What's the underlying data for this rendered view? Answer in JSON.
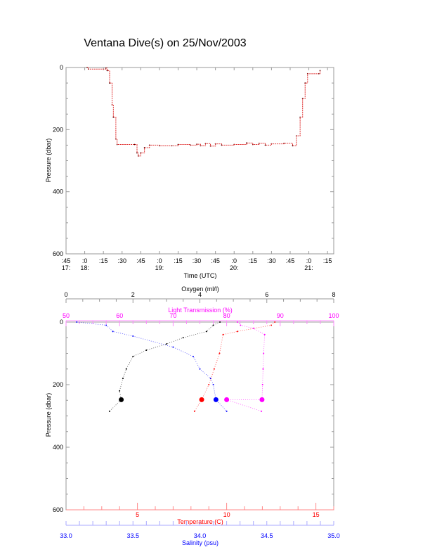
{
  "title": "Ventana Dive(s) on 25/Nov/2003",
  "chart_data": [
    {
      "type": "line",
      "xlabel": "Time (UTC)",
      "ylabel": "Pressure (dbar)",
      "xlim": [
        "17:45",
        "21:20"
      ],
      "ylim": [
        600,
        0
      ],
      "x_ticks": [
        {
          "t": "17:45",
          "l1": ":45",
          "l2": "17:"
        },
        {
          "t": "18:00",
          "l1": ":0",
          "l2": "18:"
        },
        {
          "t": "18:15",
          "l1": ":15",
          "l2": ""
        },
        {
          "t": "18:30",
          "l1": ":30",
          "l2": ""
        },
        {
          "t": "18:45",
          "l1": ":45",
          "l2": ""
        },
        {
          "t": "19:00",
          "l1": ":0",
          "l2": "19:"
        },
        {
          "t": "19:15",
          "l1": ":15",
          "l2": ""
        },
        {
          "t": "19:30",
          "l1": ":30",
          "l2": ""
        },
        {
          "t": "19:45",
          "l1": ":45",
          "l2": ""
        },
        {
          "t": "20:00",
          "l1": ":0",
          "l2": "20:"
        },
        {
          "t": "20:15",
          "l1": ":15",
          "l2": ""
        },
        {
          "t": "20:30",
          "l1": ":30",
          "l2": ""
        },
        {
          "t": "20:45",
          "l1": ":45",
          "l2": ""
        },
        {
          "t": "21:00",
          "l1": ":0",
          "l2": "21:"
        },
        {
          "t": "21:15",
          "l1": ":15",
          "l2": ""
        }
      ],
      "y_ticks": [
        "0",
        "200",
        "400",
        "600"
      ],
      "line_color": "#e03030",
      "series": [
        {
          "x": [
            "18:02",
            "18:03",
            "18:17",
            "18:18",
            "18:20",
            "18:22",
            "18:23",
            "18:25",
            "18:26",
            "18:40",
            "18:42",
            "18:43",
            "18:45",
            "18:48",
            "18:52",
            "19:00",
            "19:10",
            "19:15",
            "19:25",
            "19:30",
            "19:33",
            "19:37",
            "19:41",
            "19:45",
            "19:50",
            "20:00",
            "20:10",
            "20:15",
            "20:20",
            "20:25",
            "20:30",
            "20:40",
            "20:47",
            "20:50",
            "20:53",
            "20:55",
            "20:57",
            "20:59",
            "21:08",
            "21:09"
          ],
          "y": [
            0,
            5,
            2,
            10,
            50,
            120,
            160,
            230,
            248,
            248,
            275,
            285,
            275,
            258,
            250,
            252,
            252,
            248,
            250,
            247,
            252,
            245,
            253,
            246,
            250,
            248,
            243,
            248,
            244,
            250,
            246,
            244,
            252,
            220,
            160,
            100,
            50,
            20,
            20,
            10
          ]
        }
      ]
    },
    {
      "type": "scatter",
      "ylabel": "Pressure (dbar)",
      "ylim": [
        600,
        0
      ],
      "y_ticks": [
        "0",
        "200",
        "400",
        "600"
      ],
      "axes": {
        "oxygen": {
          "label": "Oxygen (ml/l)",
          "range": [
            0,
            8
          ],
          "ticks": [
            "0",
            "2",
            "4",
            "6",
            "8"
          ],
          "color": "#000000"
        },
        "light": {
          "label": "Light Transmission (%)",
          "range": [
            50,
            100
          ],
          "ticks": [
            "50",
            "60",
            "70",
            "80",
            "90",
            "100"
          ],
          "color": "#ff00ff"
        },
        "temperature": {
          "label": "Temperature (C)",
          "range": [
            1,
            16
          ],
          "ticks": [
            "5",
            "10",
            "15"
          ],
          "color": "#ff0000"
        },
        "salinity": {
          "label": "Salinity (psu)",
          "range": [
            33,
            35
          ],
          "ticks": [
            "33.0",
            "33.5",
            "34.0",
            "34.5",
            "35.0"
          ],
          "color": "#0000ff"
        }
      },
      "series": [
        {
          "axis": "oxygen",
          "x": [
            4.6,
            4.4,
            4.2,
            3.5,
            3.0,
            2.4,
            2.0,
            1.8,
            1.7,
            1.6,
            1.65,
            1.3
          ],
          "y": [
            0,
            10,
            30,
            50,
            70,
            90,
            110,
            150,
            180,
            220,
            248,
            285
          ]
        },
        {
          "axis": "salinity",
          "x": [
            33.08,
            33.3,
            33.35,
            33.5,
            33.8,
            33.95,
            34.0,
            34.08,
            34.1,
            34.12,
            34.2
          ],
          "y": [
            0,
            10,
            30,
            45,
            80,
            110,
            150,
            180,
            200,
            248,
            285
          ]
        },
        {
          "axis": "temperature",
          "x": [
            12.7,
            12.5,
            10.6,
            9.8,
            9.6,
            9.3,
            9.0,
            8.6,
            8.2
          ],
          "y": [
            0,
            10,
            30,
            40,
            100,
            150,
            200,
            248,
            285
          ]
        },
        {
          "axis": "light",
          "x": [
            82,
            82.6,
            85,
            87.1,
            86.9,
            86.8,
            86.7,
            86.6,
            80,
            86.5
          ],
          "y": [
            0,
            10,
            20,
            40,
            100,
            150,
            200,
            248,
            248,
            285
          ]
        }
      ]
    }
  ]
}
